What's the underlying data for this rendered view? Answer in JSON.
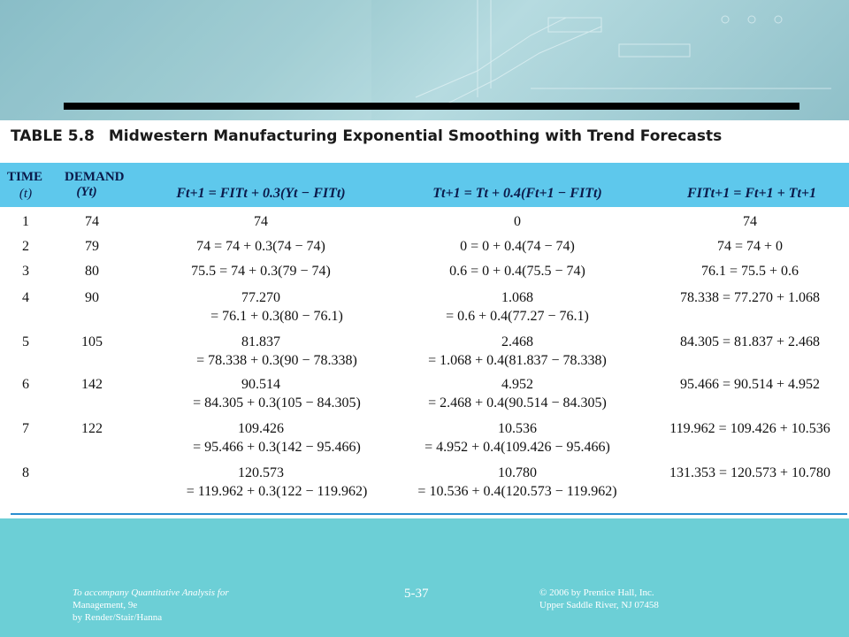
{
  "table": {
    "number": "TABLE 5.8",
    "title": "Midwestern Manufacturing Exponential Smoothing with Trend Forecasts",
    "headers": {
      "time_line1": "TIME",
      "time_line2": "(t)",
      "demand_line1": "DEMAND",
      "demand_line2": "(Yt)",
      "forecast_formula": "Ft+1 = FITt + 0.3(Yt − FITt)",
      "trend_formula": "Tt+1 = Tt + 0.4(Ft+1 − FITt)",
      "fit_formula": "FITt+1 = Ft+1 + Tt+1"
    },
    "rows": [
      {
        "time": "1",
        "demand": "74",
        "f1": "74",
        "f2": "",
        "t1": "0",
        "t2": "",
        "fit": "74"
      },
      {
        "time": "2",
        "demand": "79",
        "f1": "74 = 74 + 0.3(74 − 74)",
        "f2": "",
        "t1": "0 = 0 + 0.4(74 − 74)",
        "t2": "",
        "fit": "74 = 74 + 0"
      },
      {
        "time": "3",
        "demand": "80",
        "f1": "75.5 = 74 + 0.3(79 − 74)",
        "f2": "",
        "t1": "0.6 = 0 + 0.4(75.5 − 74)",
        "t2": "",
        "fit": "76.1 = 75.5 + 0.6"
      },
      {
        "time": "4",
        "demand": "90",
        "f1": "77.270",
        "f2": "= 76.1 + 0.3(80 − 76.1)",
        "t1": "1.068",
        "t2": "= 0.6 + 0.4(77.27 − 76.1)",
        "fit": "78.338 = 77.270 + 1.068"
      },
      {
        "time": "5",
        "demand": "105",
        "f1": "81.837",
        "f2": "= 78.338 + 0.3(90 − 78.338)",
        "t1": "2.468",
        "t2": "= 1.068 + 0.4(81.837 − 78.338)",
        "fit": "84.305 = 81.837 + 2.468"
      },
      {
        "time": "6",
        "demand": "142",
        "f1": "90.514",
        "f2": "= 84.305 + 0.3(105 − 84.305)",
        "t1": "4.952",
        "t2": "= 2.468 + 0.4(90.514 − 84.305)",
        "fit": "95.466 = 90.514 + 4.952"
      },
      {
        "time": "7",
        "demand": "122",
        "f1": "109.426",
        "f2": "= 95.466 + 0.3(142 − 95.466)",
        "t1": "10.536",
        "t2": "= 4.952 + 0.4(109.426 − 95.466)",
        "fit": "119.962 = 109.426 + 10.536"
      },
      {
        "time": "8",
        "demand": "",
        "f1": "120.573",
        "f2": "= 119.962 + 0.3(122 − 119.962)",
        "t1": "10.780",
        "t2": "= 10.536 + 0.4(120.573 − 119.962)",
        "fit": "131.353 = 120.573 + 10.780"
      }
    ]
  },
  "footer": {
    "left_line1": "To accompany Quantitative Analysis for",
    "left_line2": "Management, 9e",
    "left_line3": "by Render/Stair/Hanna",
    "page": "5-37",
    "right_line1": "© 2006 by Prentice Hall, Inc.",
    "right_line2": "Upper Saddle River,  NJ 07458"
  },
  "colors": {
    "background": "#6ccfd6",
    "header_band": "#5ec8ec",
    "rule": "#2a8fd0"
  }
}
